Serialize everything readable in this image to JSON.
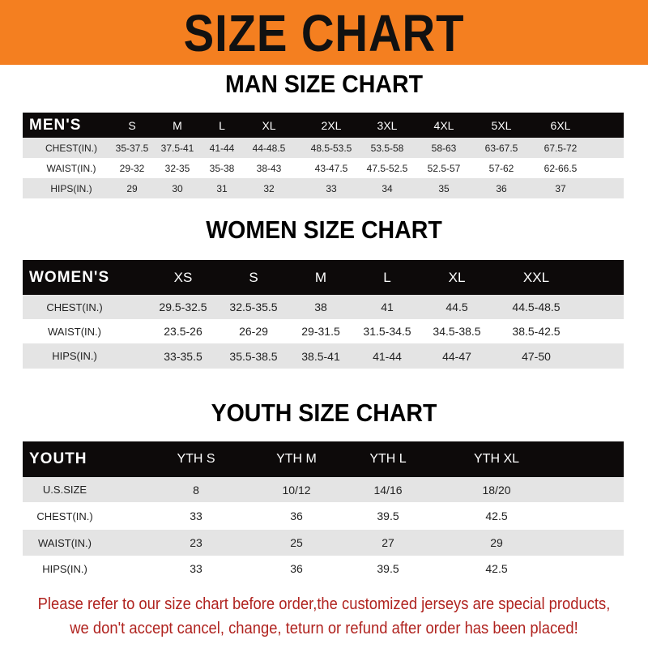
{
  "banner": {
    "title": "SIZE CHART",
    "color": "#f47f20"
  },
  "men": {
    "title": "MAN SIZE CHART",
    "header": [
      "MEN'S",
      "S",
      "M",
      "L",
      "XL",
      "2XL",
      "3XL",
      "4XL",
      "5XL",
      "6XL"
    ],
    "rows": [
      [
        "CHEST(IN.)",
        "35-37.5",
        "37.5-41",
        "41-44",
        "44-48.5",
        "48.5-53.5",
        "53.5-58",
        "58-63",
        "63-67.5",
        "67.5-72"
      ],
      [
        "WAIST(IN.)",
        "29-32",
        "32-35",
        "35-38",
        "38-43",
        "43-47.5",
        "47.5-52.5",
        "52.5-57",
        "57-62",
        "62-66.5"
      ],
      [
        "HIPS(IN.)",
        "29",
        "30",
        "31",
        "32",
        "33",
        "34",
        "35",
        "36",
        "37"
      ]
    ]
  },
  "women": {
    "title": "WOMEN SIZE CHART",
    "header": [
      "WOMEN'S",
      "XS",
      "S",
      "M",
      "L",
      "XL",
      "XXL"
    ],
    "rows": [
      [
        "CHEST(IN.)",
        "29.5-32.5",
        "32.5-35.5",
        "38",
        "41",
        "44.5",
        "44.5-48.5"
      ],
      [
        "WAIST(IN.)",
        "23.5-26",
        "26-29",
        "29-31.5",
        "31.5-34.5",
        "34.5-38.5",
        "38.5-42.5"
      ],
      [
        "HIPS(IN.)",
        "33-35.5",
        "35.5-38.5",
        "38.5-41",
        "41-44",
        "44-47",
        "47-50"
      ]
    ]
  },
  "youth": {
    "title": "YOUTH SIZE CHART",
    "header": [
      "YOUTH",
      "YTH S",
      "YTH M",
      "YTH L",
      "YTH XL"
    ],
    "rows": [
      [
        "U.S.SIZE",
        "8",
        "10/12",
        "14/16",
        "18/20"
      ],
      [
        "CHEST(IN.)",
        "33",
        "36",
        "39.5",
        "42.5"
      ],
      [
        "WAIST(IN.)",
        "23",
        "25",
        "27",
        "29"
      ],
      [
        "HIPS(IN.)",
        "33",
        "36",
        "39.5",
        "42.5"
      ]
    ]
  },
  "footer": {
    "line1": "Please refer to our size chart before order,the customized jerseys are special products,",
    "line2": "we don't accept cancel, change, teturn or refund after order has been placed!",
    "color": "#b0231f"
  }
}
